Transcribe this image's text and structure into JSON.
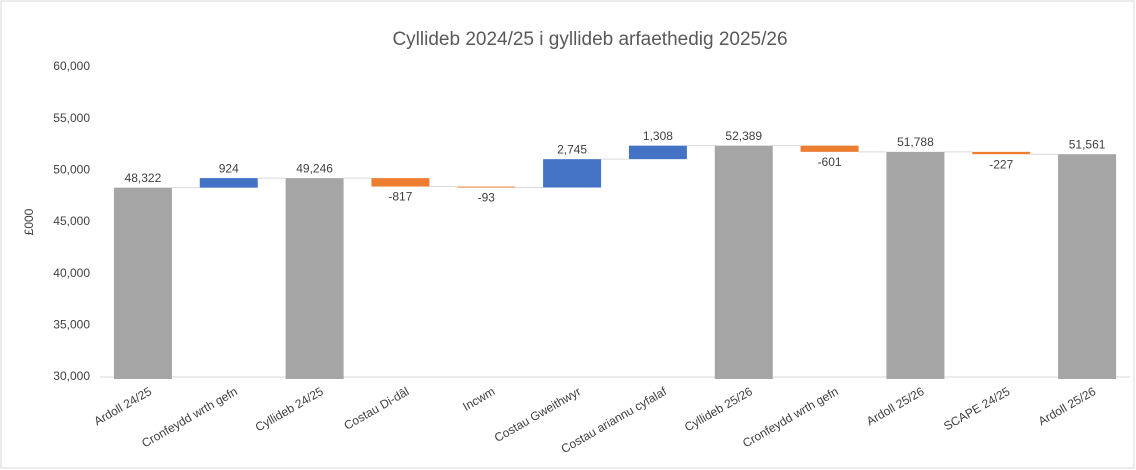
{
  "chart_data": {
    "type": "waterfall",
    "title": "Cyllideb 2024/25 i gyllideb arfaethedig 2025/26",
    "y_label": "£000",
    "categories": [
      "Ardoll 24/25",
      "Cronfeydd wrth gefn",
      "Cyllideb 24/25",
      "Costau Di-dâl",
      "Incwm",
      "Costau Gweithwyr",
      "Costau ariannu cyfalaf",
      "Cyllideb 25/26",
      "Cronfeydd wrth gefn",
      "Ardoll 25/26",
      "SCAPE 24/25",
      "Ardoll 25/26"
    ],
    "values": [
      48322,
      924,
      49246,
      -817,
      -93,
      2745,
      1308,
      52389,
      -601,
      51788,
      -227,
      51561
    ],
    "value_labels": [
      "48,322",
      "924",
      "49,246",
      "-817",
      "-93",
      "2,745",
      "1,308",
      "52,389",
      "-601",
      "51,788",
      "-227",
      "51,561"
    ],
    "colors": [
      "#a5a5a5",
      "#4472c4",
      "#a5a5a5",
      "#ed7d31",
      "#ed7d31",
      "#4472c4",
      "#4472c4",
      "#a5a5a5",
      "#ed7d31",
      "#a5a5a5",
      "#ed7d31",
      "#a5a5a5"
    ],
    "total_color": "#a5a5a5",
    "ylim": [
      30000,
      60000
    ],
    "yticks": [
      {
        "value": 30000,
        "label": "30,000"
      },
      {
        "value": 35000,
        "label": "35,000"
      },
      {
        "value": 40000,
        "label": "40,000"
      },
      {
        "value": 45000,
        "label": "45,000"
      },
      {
        "value": 50000,
        "label": "50,000"
      },
      {
        "value": 55000,
        "label": "55,000"
      },
      {
        "value": 60000,
        "label": "60,000"
      }
    ]
  }
}
